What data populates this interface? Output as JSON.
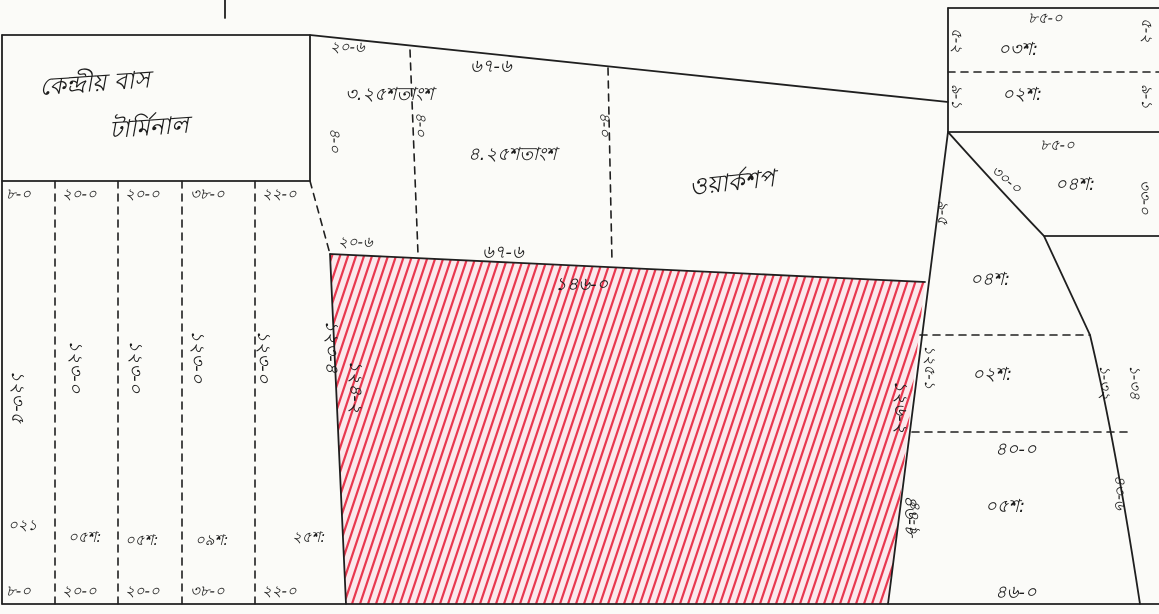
{
  "colors": {
    "ink": "#1f1f1f",
    "hatch": "#e8384f",
    "paper": "#fbfbf8"
  },
  "highlight_label": "১৪৬-০",
  "labels": {
    "left_block_title_1": "কেন্দ্রীয় বাস",
    "left_block_title_2": "টার্মিনাল",
    "center_right_block": "ওয়ার্কশপ",
    "top_dim_left": "২০-৬",
    "top_dim_mid": "৬৭-৬",
    "center_mid_area": "৪.২৫শতাংশ",
    "center_left_area": "৩.২৫শতাংশ",
    "lower_dim_left": "২০-৬",
    "lower_dim_mid": "৬৭-৬",
    "side_dim_1": "৪-০",
    "side_dim_2": "৪-০",
    "side_dim_3": "৪-০",
    "hatch_left_dim": "১২৪-২",
    "hatch_right_dim": "১২৬-২",
    "hatch_bottom_right_dim": "৪৬-৮",
    "strip_top_1": "৮-০",
    "strip_top_2": "২০-০",
    "strip_top_3": "২০-০",
    "strip_top_4": "৩৮-০",
    "strip_top_5": "২২-০",
    "strip_bot_1": "৮-০",
    "strip_bot_2": "২০-০",
    "strip_bot_3": "২০-০",
    "strip_bot_4": "৩৮-০",
    "strip_bot_5": "২২-০",
    "strip_len_1": "১২৩-৫",
    "strip_len_2": "১২৩-০",
    "strip_len_3": "১২৩-০",
    "strip_len_4": "১২৩-০",
    "strip_len_5": "১২৩-০",
    "strip_len_6": "১২৩-৪",
    "strip_area_1": "০২১",
    "strip_area_2": "০৫শ:",
    "strip_area_3": "০৫শ:",
    "strip_area_4": "০৯শ:",
    "strip_area_5": "২৫শ:",
    "tr_top_dim": "৮৫-০",
    "tr_area_1": "০৩শ:",
    "tr_area_2": "০২শ:",
    "tr_side_1": "৫-২",
    "tr_side_2": "৫-২",
    "tr_side_3": "৯-১",
    "tr_side_4": "৯-১",
    "tr2_top_dim": "৮৫-০",
    "tr2_area": "০৪শ:",
    "tr2_diag": "৩০-০",
    "tr2_side": "৩৩-০",
    "re_area_1": "০৪শ:",
    "re_area_2": "০২শ:",
    "re_area_3": "০৫শ:",
    "re_side_1": "৯-৫",
    "re_side_2": "১২৫-১",
    "re_side_3": "১-৩২",
    "re_side_4": "১-৩৪",
    "re_side_5": "৪০-১",
    "re_side_6": "৪৩-৬",
    "re_dim_mid": "৪০-০",
    "re_dim_bot": "৪৬-০"
  }
}
